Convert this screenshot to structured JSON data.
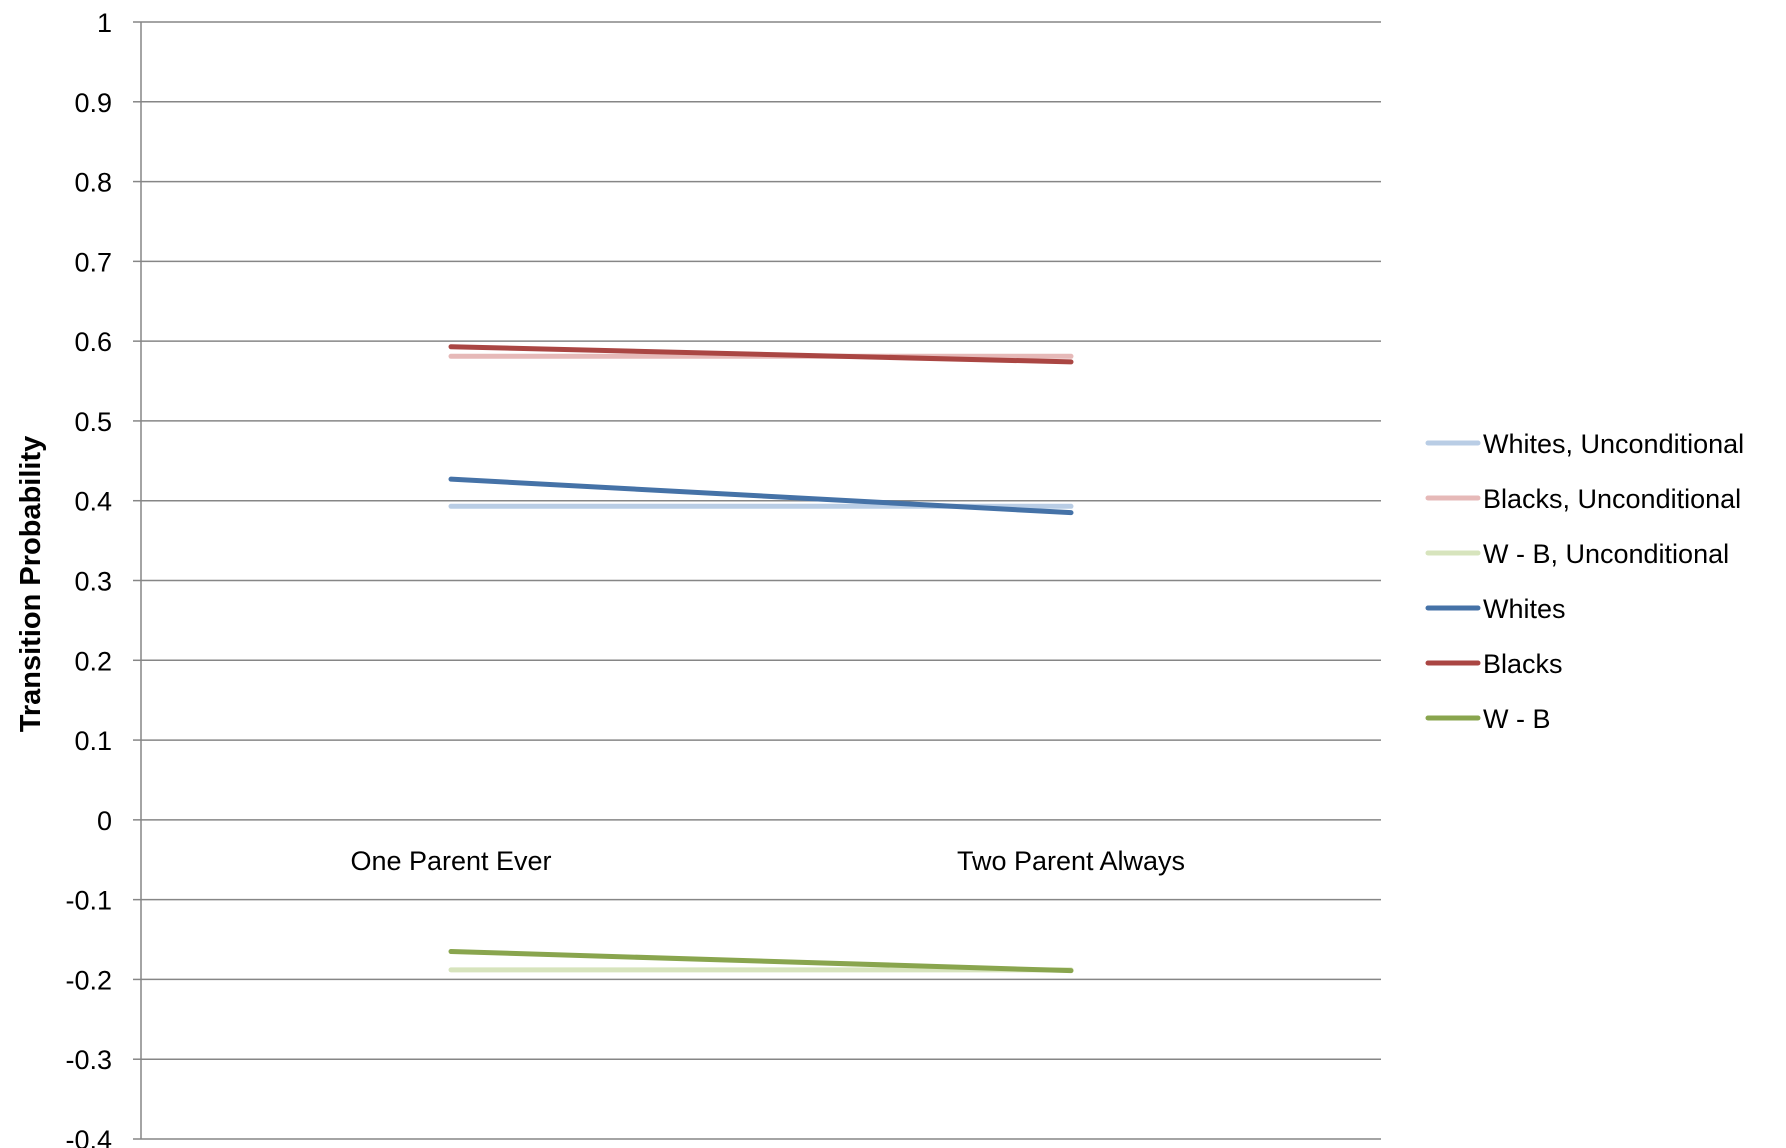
{
  "chart_data": {
    "type": "line",
    "title": "",
    "xlabel": "",
    "ylabel": "Transition Probability",
    "categories": [
      "One Parent Ever",
      "Two Parent Always"
    ],
    "ylim": [
      -0.4,
      1
    ],
    "yticks": [
      1,
      0.9,
      0.8,
      0.7,
      0.6,
      0.5,
      0.4,
      0.3,
      0.2,
      0.1,
      0,
      -0.1,
      -0.2,
      -0.3,
      -0.4
    ],
    "ytick_labels": [
      "1",
      "0.9",
      "0.8",
      "0.7",
      "0.6",
      "0.5",
      "0.4",
      "0.3",
      "0.2",
      "0.1",
      "0",
      "-0.1",
      "-0.2",
      "-0.3",
      "-0.4"
    ],
    "grid": true,
    "legend_position": "right",
    "series": [
      {
        "name": "Whites, Unconditional",
        "values": [
          0.393,
          0.393
        ],
        "color": "#b9cde5"
      },
      {
        "name": "Blacks, Unconditional",
        "values": [
          0.581,
          0.581
        ],
        "color": "#e6b9b8"
      },
      {
        "name": "W - B, Unconditional",
        "values": [
          -0.188,
          -0.188
        ],
        "color": "#d7e4bd"
      },
      {
        "name": "Whites",
        "values": [
          0.427,
          0.385
        ],
        "color": "#4572a7"
      },
      {
        "name": "Blacks",
        "values": [
          0.593,
          0.574
        ],
        "color": "#aa4643"
      },
      {
        "name": "W - B",
        "values": [
          -0.165,
          -0.189
        ],
        "color": "#89a54e"
      }
    ]
  }
}
